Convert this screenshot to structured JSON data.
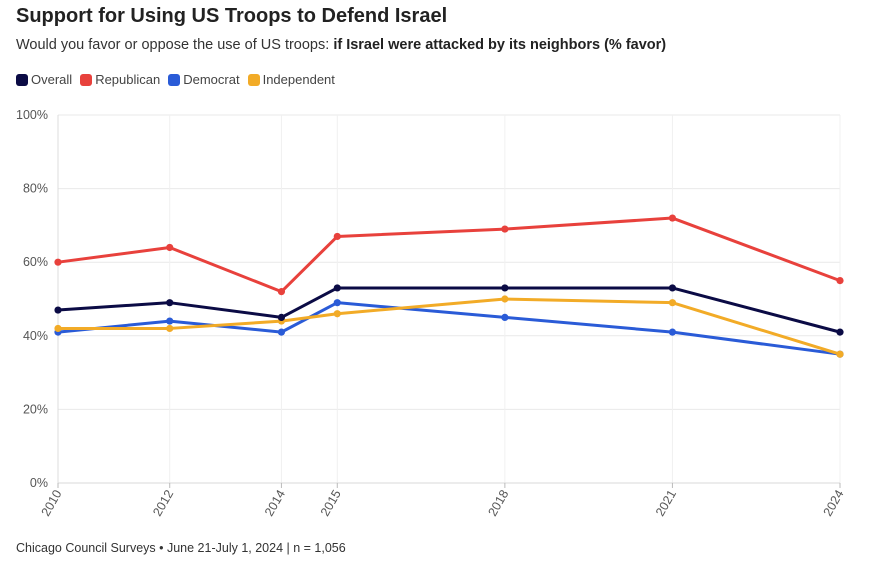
{
  "title": "Support for Using US Troops to Defend Israel",
  "subtitle_prefix": "Would you favor or oppose the use of US troops: ",
  "subtitle_bold": "if Israel were attacked by its neighbors (% favor)",
  "footer": "Chicago Council Surveys • June 21-July 1, 2024 | n = 1,056",
  "chart_data": {
    "type": "line",
    "x": [
      2010,
      2012,
      2014,
      2015,
      2018,
      2021,
      2024
    ],
    "x_tick_labels": [
      "2010",
      "2012",
      "2014",
      "2015",
      "2018",
      "2021",
      "2024"
    ],
    "ylim": [
      0,
      100
    ],
    "y_ticks": [
      0,
      20,
      40,
      60,
      80,
      100
    ],
    "y_tick_labels": [
      "0%",
      "20%",
      "40%",
      "60%",
      "80%",
      "100%"
    ],
    "grid": true,
    "legend_position": "top-left",
    "series": [
      {
        "name": "Overall",
        "color": "#0b0b45",
        "values": [
          47,
          49,
          45,
          53,
          53,
          53,
          41
        ]
      },
      {
        "name": "Republican",
        "color": "#e8413c",
        "values": [
          60,
          64,
          52,
          67,
          69,
          72,
          55
        ]
      },
      {
        "name": "Democrat",
        "color": "#2a5bd7",
        "values": [
          41,
          44,
          41,
          49,
          45,
          41,
          35
        ]
      },
      {
        "name": "Independent",
        "color": "#f2ab27",
        "values": [
          42,
          42,
          44,
          46,
          50,
          49,
          35
        ]
      }
    ]
  }
}
